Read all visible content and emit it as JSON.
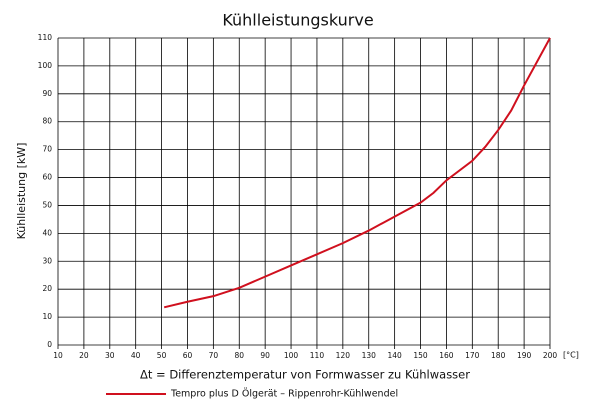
{
  "chart_data": {
    "type": "line",
    "title": "Kühlleistungskurve",
    "y_label": "Kühlleistung [kW]",
    "x_label": "Δt = Differenztemperatur von Formwasser zu Kühlwasser",
    "x_unit": "[°C]",
    "x": [
      51,
      60,
      70,
      80,
      90,
      100,
      110,
      120,
      130,
      140,
      150,
      155,
      160,
      170,
      175,
      180,
      185,
      190,
      200
    ],
    "series": [
      {
        "name": "Tempro plus D Ölgerät – Rippenrohr-Kühlwendel",
        "color": "#d0101e",
        "values": [
          13.5,
          15.5,
          17.5,
          20.5,
          24.5,
          28.5,
          32.5,
          36.5,
          41,
          46,
          51,
          54.5,
          59,
          66,
          71,
          77,
          84,
          93,
          110
        ]
      }
    ],
    "xlim": [
      10,
      200
    ],
    "xticks": [
      10,
      20,
      30,
      40,
      50,
      60,
      70,
      80,
      90,
      100,
      110,
      120,
      130,
      140,
      150,
      160,
      170,
      180,
      190,
      200
    ],
    "ylim": [
      0,
      110
    ],
    "yticks": [
      0,
      10,
      20,
      30,
      40,
      50,
      60,
      70,
      80,
      90,
      100,
      110
    ],
    "grid": true,
    "legend": "bottom"
  }
}
